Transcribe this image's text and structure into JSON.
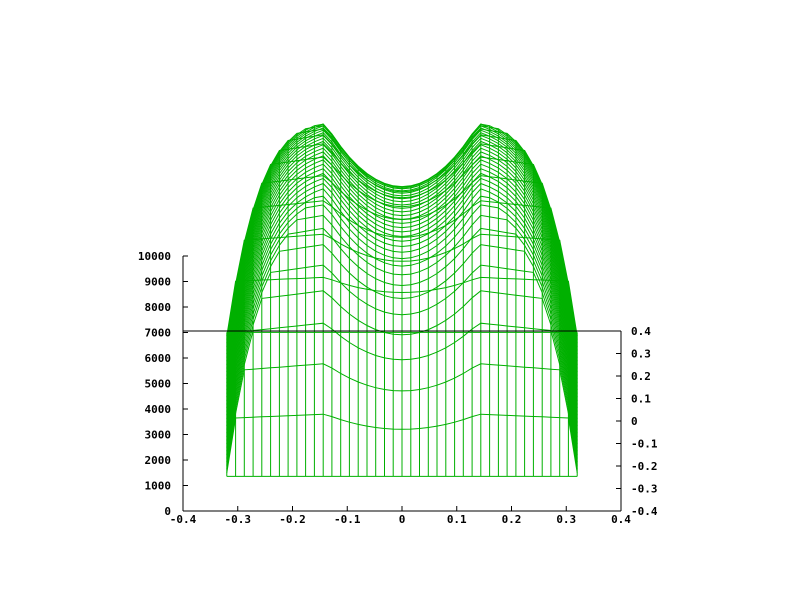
{
  "chart_data": {
    "type": "surface-mesh",
    "title": "",
    "xlabel": "",
    "ylabel": "",
    "zlabel": "",
    "grid": false,
    "legend": "none",
    "colors": {
      "mesh": "#00b000",
      "axis": "#000000"
    },
    "x_ticks": [
      "-0.4",
      "-0.3",
      "-0.2",
      "-0.1",
      "0",
      "0.1",
      "0.2",
      "0.3",
      "0.4"
    ],
    "x_tick_values": [
      -0.4,
      -0.3,
      -0.2,
      -0.1,
      0,
      0.1,
      0.2,
      0.3,
      0.4
    ],
    "y_ticks": [
      "-0.4",
      "-0.3",
      "-0.2",
      "-0.1",
      "0",
      "0.1",
      "0.2",
      "0.3",
      "0.4"
    ],
    "y_tick_values": [
      -0.4,
      -0.3,
      -0.2,
      -0.1,
      0,
      0.1,
      0.2,
      0.3,
      0.4
    ],
    "z_ticks": [
      "0",
      "1000",
      "2000",
      "3000",
      "4000",
      "5000",
      "6000",
      "7000",
      "8000",
      "9000",
      "10000"
    ],
    "z_tick_values": [
      0,
      1000,
      2000,
      3000,
      4000,
      5000,
      6000,
      7000,
      8000,
      9000,
      10000
    ],
    "xlim": [
      -0.4,
      0.4
    ],
    "ylim": [
      -0.4,
      0.4
    ],
    "zlim": [
      0,
      10000
    ],
    "surface": {
      "x_range": [
        -0.32,
        0.32
      ],
      "y_range": [
        -0.32,
        0.32
      ],
      "rim_value": 650,
      "center_value": 8200,
      "peak_value": 10800,
      "peak_x": 0.14
    }
  }
}
